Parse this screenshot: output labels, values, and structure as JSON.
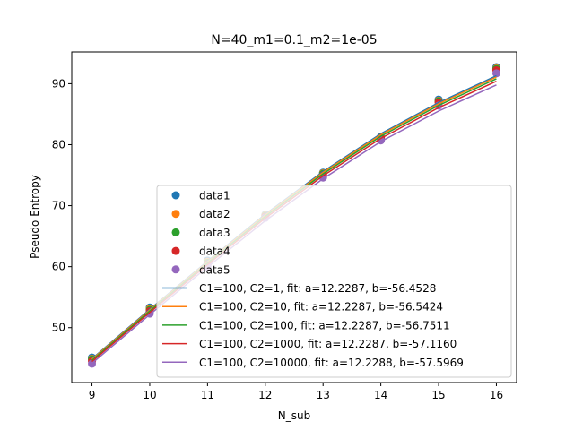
{
  "chart_data": {
    "type": "scatter",
    "title": "N=40_m1=0.1_m2=1e-05",
    "xlabel": "N_sub",
    "ylabel": "Pseudo Entropy",
    "xlim": [
      8.65,
      16.35
    ],
    "ylim": [
      41.0,
      95.2
    ],
    "xticks": [
      9,
      10,
      11,
      12,
      13,
      14,
      15,
      16
    ],
    "yticks": [
      50,
      60,
      70,
      80,
      90
    ],
    "grid": false,
    "legend_position": "lower right",
    "scatter_series": [
      {
        "name": "data1",
        "color": "#1f77b4",
        "x": [
          9,
          10,
          11,
          12,
          13,
          14,
          15,
          16
        ],
        "y": [
          45.1,
          53.3,
          61.0,
          68.5,
          75.4,
          81.3,
          87.4,
          92.7
        ]
      },
      {
        "name": "data2",
        "color": "#ff7f0e",
        "x": [
          9,
          10,
          11,
          12,
          13,
          14,
          15,
          16
        ],
        "y": [
          44.9,
          53.1,
          60.8,
          68.4,
          75.3,
          81.2,
          87.2,
          92.5
        ]
      },
      {
        "name": "data3",
        "color": "#2ca02c",
        "x": [
          9,
          10,
          11,
          12,
          13,
          14,
          15,
          16
        ],
        "y": [
          44.8,
          52.9,
          60.6,
          68.3,
          75.2,
          81.1,
          87.1,
          92.4
        ]
      },
      {
        "name": "data4",
        "color": "#d62728",
        "x": [
          9,
          10,
          11,
          12,
          13,
          14,
          15,
          16
        ],
        "y": [
          44.5,
          52.7,
          60.4,
          68.2,
          75.0,
          81.0,
          86.9,
          92.2
        ]
      },
      {
        "name": "data5",
        "color": "#9467bd",
        "x": [
          9,
          10,
          11,
          12,
          13,
          14,
          15,
          16
        ],
        "y": [
          44.1,
          52.3,
          60.0,
          68.0,
          74.6,
          80.7,
          86.4,
          91.7
        ]
      }
    ],
    "fit_series": [
      {
        "name": "C1=100, C2=1, fit: a=12.2287, b=-56.4528",
        "color": "#1f77b4",
        "a": 12.2287,
        "b": -56.4528
      },
      {
        "name": "C1=100, C2=10, fit: a=12.2287, b=-56.5424",
        "color": "#ff7f0e",
        "a": 12.2287,
        "b": -56.5424
      },
      {
        "name": "C1=100, C2=100, fit: a=12.2287, b=-56.7511",
        "color": "#2ca02c",
        "a": 12.2287,
        "b": -56.7511
      },
      {
        "name": "C1=100, C2=1000, fit: a=12.2287, b=-57.1160",
        "color": "#d62728",
        "a": 12.2287,
        "b": -57.116
      },
      {
        "name": "C1=100, C2=10000, fit: a=12.2288, b=-57.5969",
        "color": "#9467bd",
        "a": 12.2288,
        "b": -57.5969
      }
    ]
  }
}
